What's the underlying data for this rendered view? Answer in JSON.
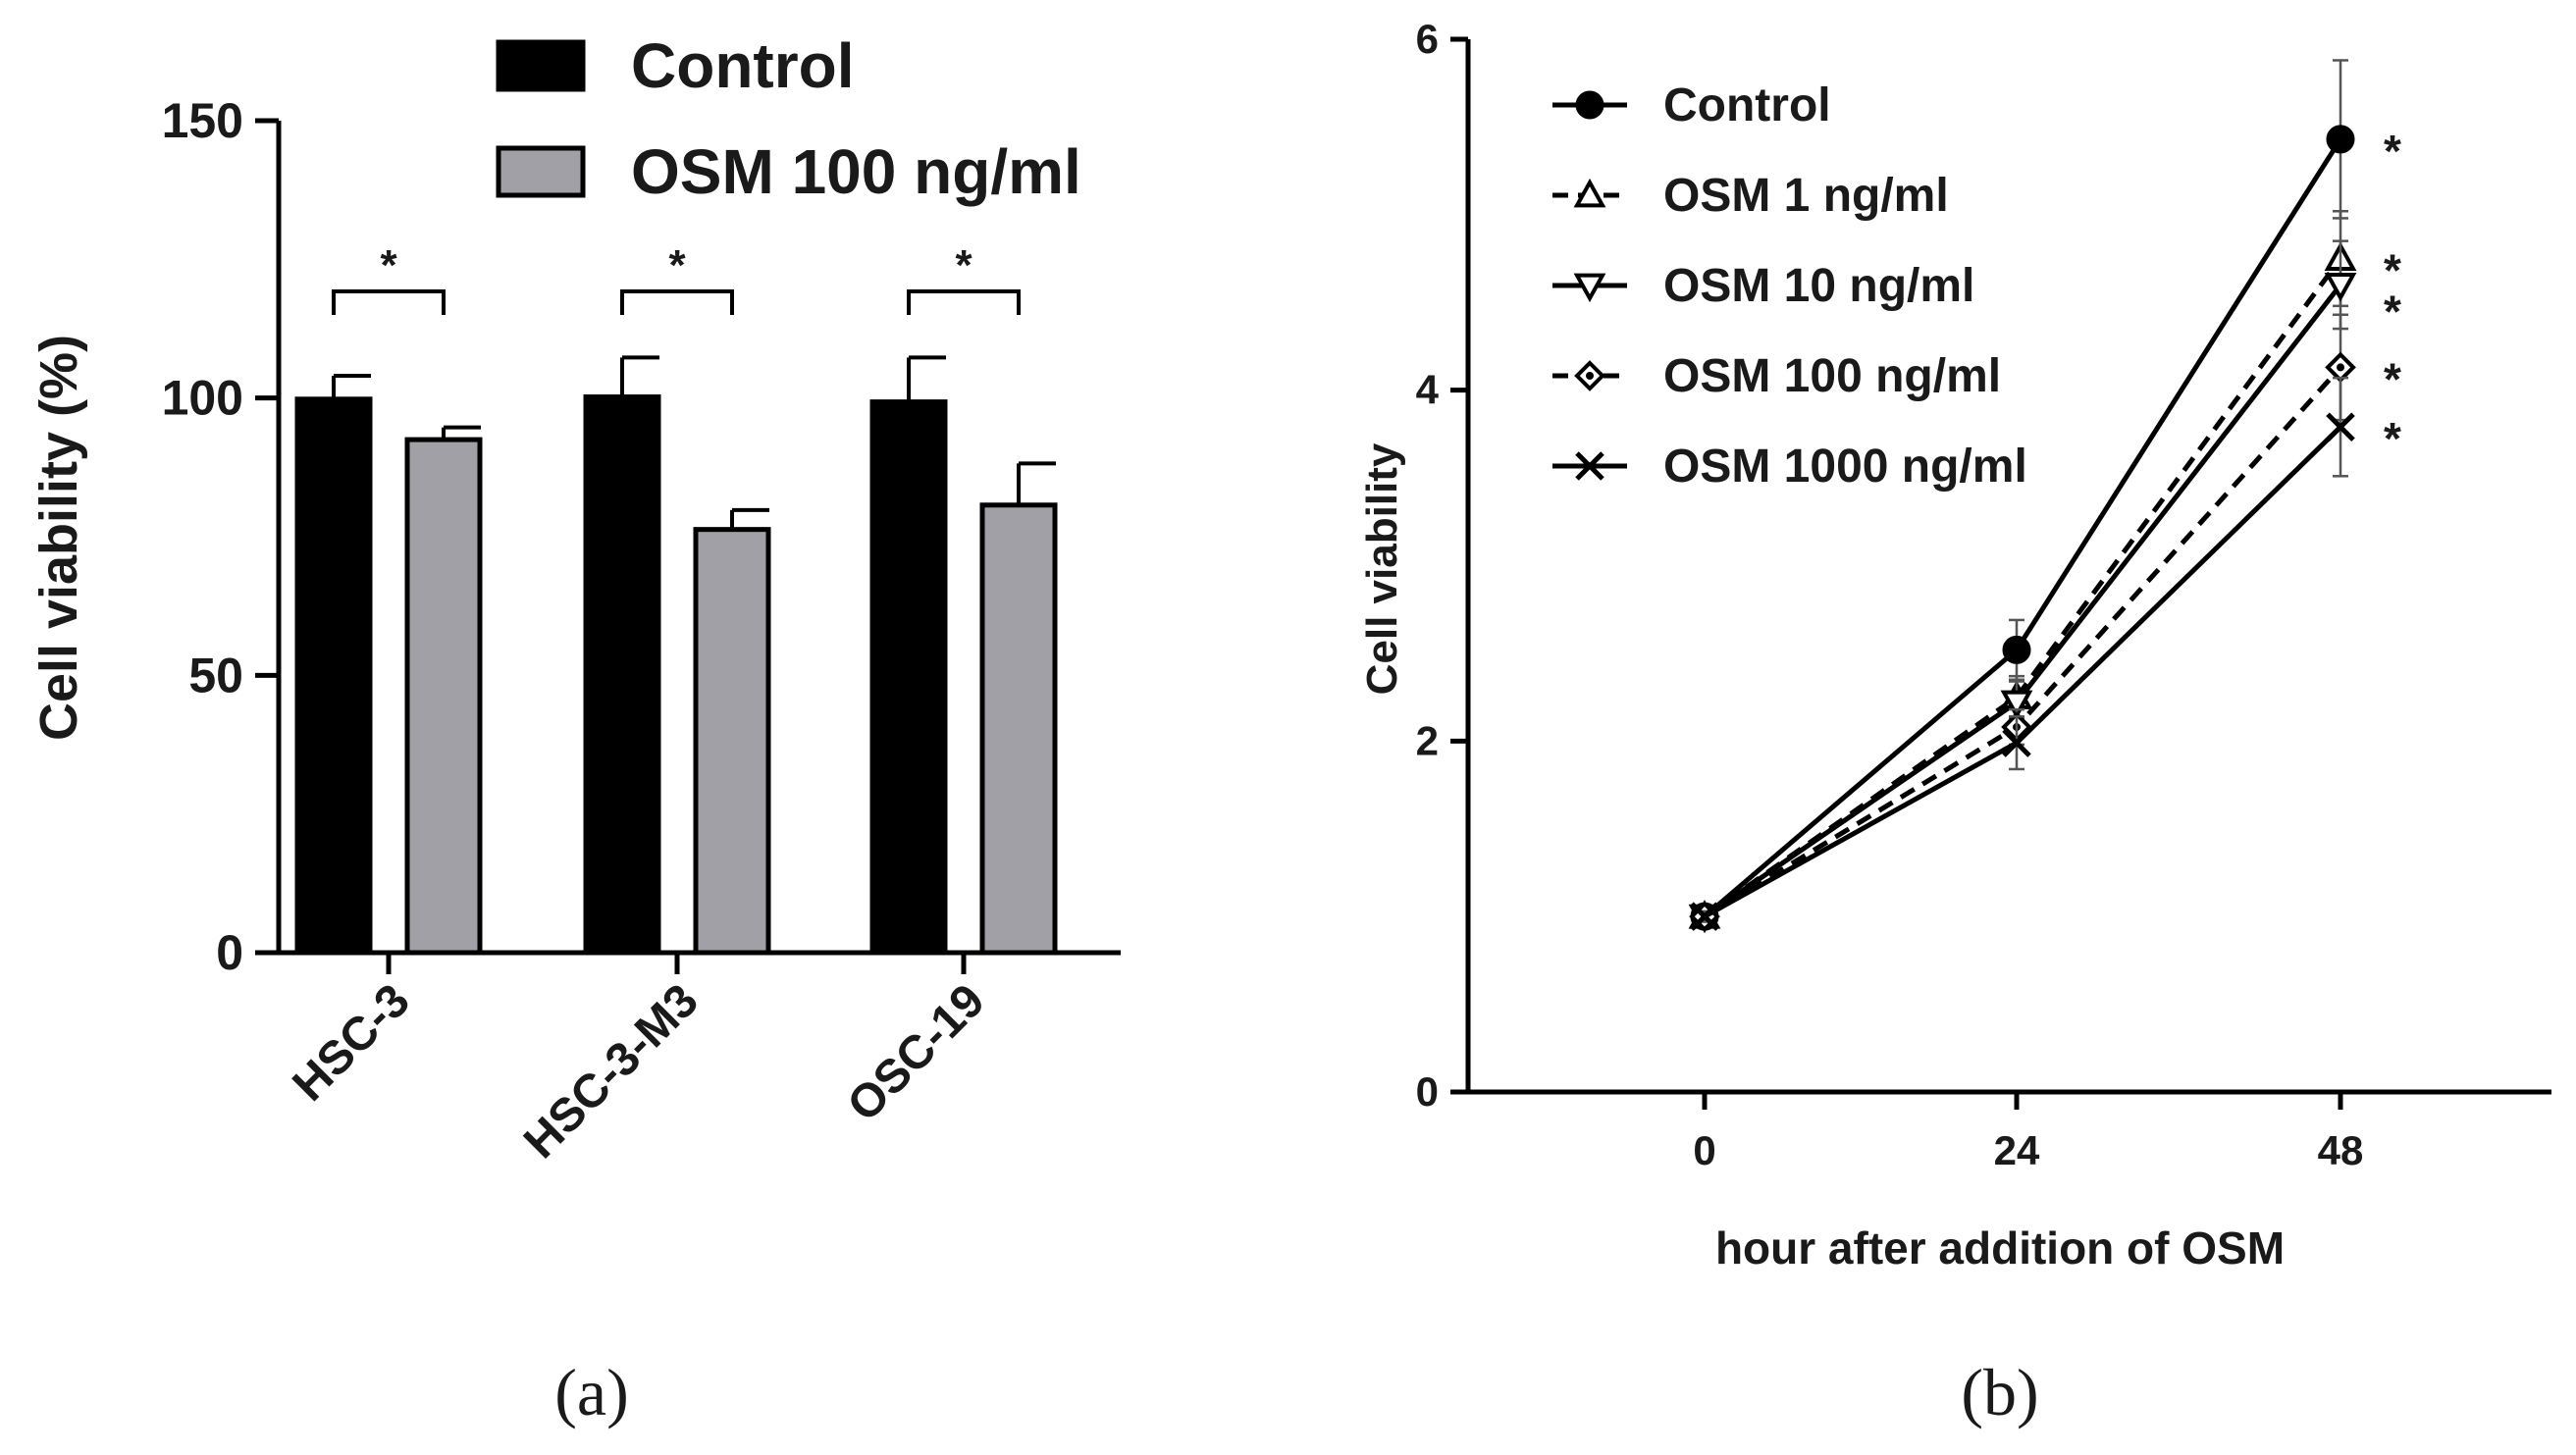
{
  "chart_data": [
    {
      "type": "bar",
      "panel_label": "(a)",
      "ylabel": "Cell viability (%)",
      "xlabel": "",
      "ylim": [
        0,
        150
      ],
      "yticks": [
        "0",
        "50",
        "100",
        "150"
      ],
      "categories": [
        "HSC-3",
        "HSC-3-M3",
        "OSC-19"
      ],
      "series": [
        {
          "name": "Control",
          "values": [
            99.8,
            100.2,
            99.3
          ],
          "errors": [
            4.2,
            7.1,
            8.0
          ],
          "color": "#000000"
        },
        {
          "name": "OSM 100 ng/ml",
          "values": [
            92.5,
            76.3,
            80.7
          ],
          "errors": [
            2.2,
            3.5,
            7.5
          ],
          "color": "#a0a0a6"
        }
      ],
      "significance": [
        "*",
        "*",
        "*"
      ],
      "legend_position": "top"
    },
    {
      "type": "line",
      "panel_label": "(b)",
      "ylabel": "Cell viability",
      "xlabel": "hour after addition of OSM",
      "x": [
        0,
        24,
        48
      ],
      "xticks": [
        "0",
        "24",
        "48"
      ],
      "ylim": [
        0,
        6
      ],
      "yticks": [
        "0",
        "2",
        "4",
        "6"
      ],
      "series": [
        {
          "name": "Control",
          "values": [
            1.0,
            2.52,
            5.43
          ],
          "errors": [
            0.03,
            0.17,
            0.45
          ],
          "marker": "filled-circle",
          "dash": "solid"
        },
        {
          "name": "OSM 1 ng/ml",
          "values": [
            1.0,
            2.25,
            4.75
          ],
          "errors": [
            0.03,
            0.12,
            0.27
          ],
          "marker": "open-triangle-up",
          "dash": "dashed"
        },
        {
          "name": "OSM 10 ng/ml",
          "values": [
            1.0,
            2.22,
            4.6
          ],
          "errors": [
            0.03,
            0.12,
            0.25
          ],
          "marker": "open-triangle-down",
          "dash": "solid"
        },
        {
          "name": "OSM 100 ng/ml",
          "values": [
            1.0,
            2.08,
            4.13
          ],
          "errors": [
            0.03,
            0.1,
            0.3
          ],
          "marker": "open-diamond",
          "dash": "dashed"
        },
        {
          "name": "OSM 1000 ng/ml",
          "values": [
            1.0,
            1.99,
            3.79
          ],
          "errors": [
            0.03,
            0.15,
            0.28
          ],
          "marker": "x",
          "dash": "solid"
        }
      ],
      "significance": [
        "*",
        "*",
        "*",
        "*",
        "*"
      ],
      "legend_position": "top-left"
    }
  ]
}
